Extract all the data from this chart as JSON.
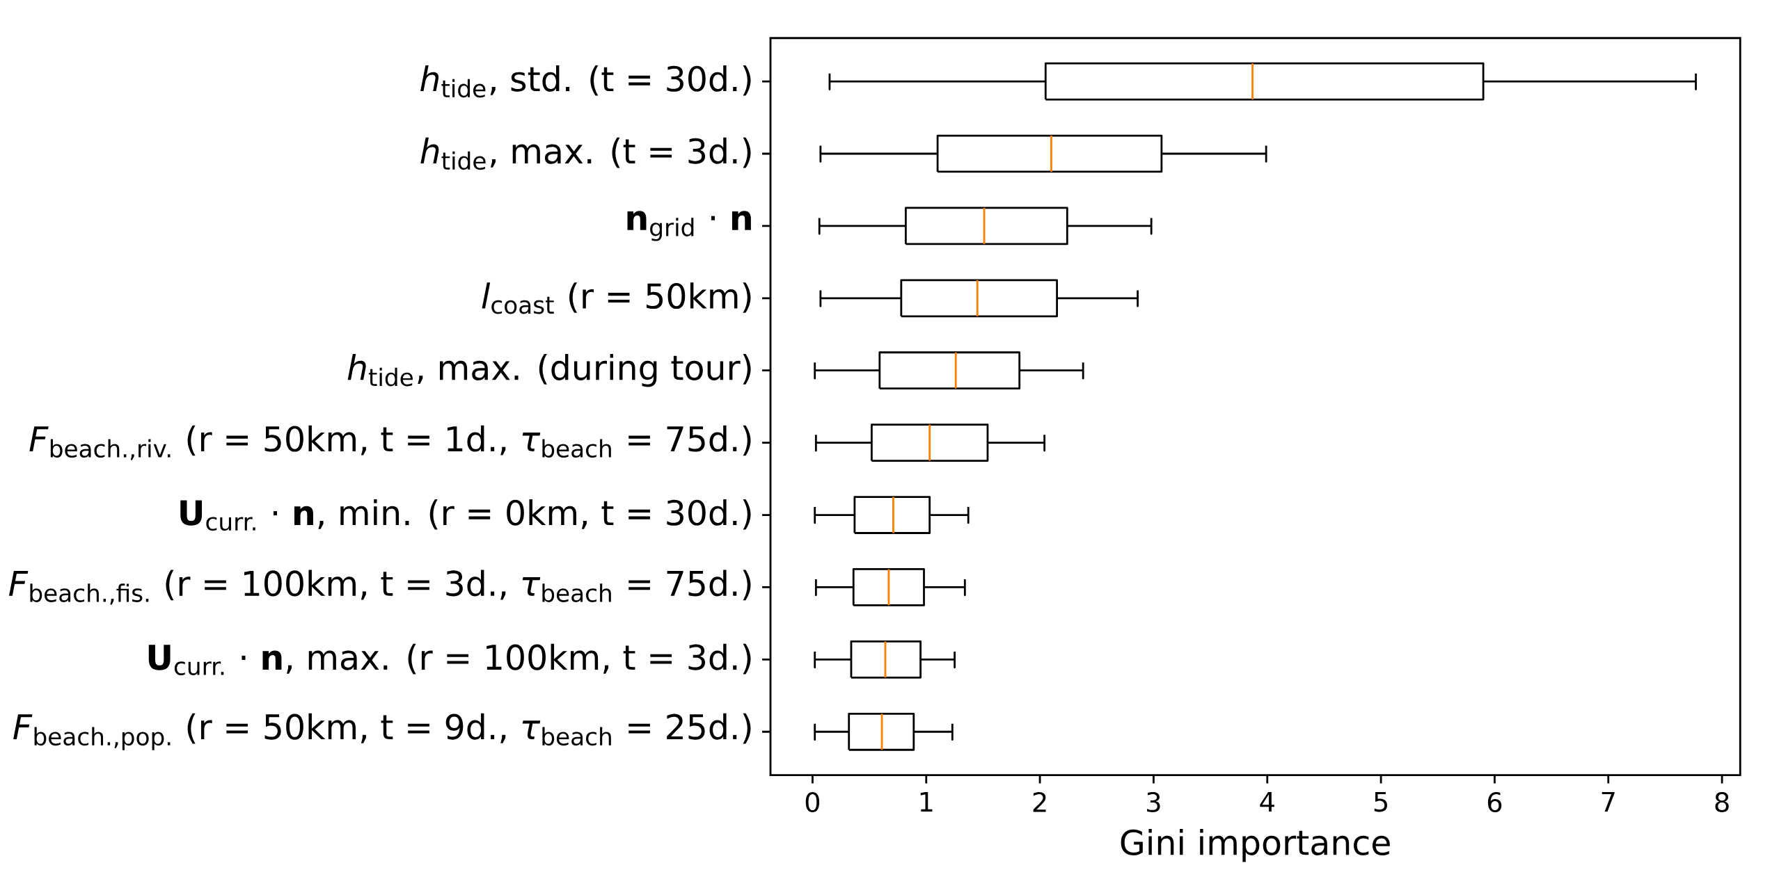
{
  "chart_data": {
    "type": "box",
    "orientation": "horizontal",
    "xlabel": "Gini importance",
    "xlim": [
      -0.37,
      8.16
    ],
    "xticks": [
      0,
      1,
      2,
      3,
      4,
      5,
      6,
      7,
      8
    ],
    "categories": [
      "*h*$_{tide}$, std. (t = 30d.)",
      "*h*$_{tide}$, max. (t = 3d.)",
      "**n**$_{grid}$ · **n**",
      "*l*$_{coast}$ (r = 50km)",
      "*h*$_{tide}$, max. (during tour)",
      "*F*$_{beach.,riv.}$ (r = 50km, t = 1d., *τ*$_{beach}$ = 75d.)",
      "**U**$_{curr.}$ · **n**, min. (r = 0km, t = 30d.)",
      "*F*$_{beach.,fis.}$ (r = 100km, t = 3d., *τ*$_{beach}$ = 75d.)",
      "**U**$_{curr.}$ · **n**, max. (r = 100km, t = 3d.)",
      "*F*$_{beach.,pop.}$ (r = 50km, t = 9d., *τ*$_{beach}$ = 25d.)"
    ],
    "series": [
      {
        "color": "#000000",
        "boxes": [
          {
            "low": 0.15,
            "q1": 2.05,
            "median": 3.87,
            "q3": 5.9,
            "high": 7.77
          },
          {
            "low": 0.07,
            "q1": 1.1,
            "median": 2.1,
            "q3": 3.07,
            "high": 3.99
          },
          {
            "low": 0.06,
            "q1": 0.82,
            "median": 1.51,
            "q3": 2.24,
            "high": 2.98
          },
          {
            "low": 0.07,
            "q1": 0.78,
            "median": 1.45,
            "q3": 2.15,
            "high": 2.86
          },
          {
            "low": 0.02,
            "q1": 0.59,
            "median": 1.26,
            "q3": 1.82,
            "high": 2.38
          },
          {
            "low": 0.03,
            "q1": 0.52,
            "median": 1.03,
            "q3": 1.54,
            "high": 2.04
          },
          {
            "low": 0.02,
            "q1": 0.37,
            "median": 0.71,
            "q3": 1.03,
            "high": 1.37
          },
          {
            "low": 0.03,
            "q1": 0.36,
            "median": 0.67,
            "q3": 0.98,
            "high": 1.34
          },
          {
            "low": 0.02,
            "q1": 0.34,
            "median": 0.64,
            "q3": 0.95,
            "high": 1.25
          },
          {
            "low": 0.02,
            "q1": 0.32,
            "median": 0.61,
            "q3": 0.89,
            "high": 1.23
          }
        ]
      }
    ]
  }
}
